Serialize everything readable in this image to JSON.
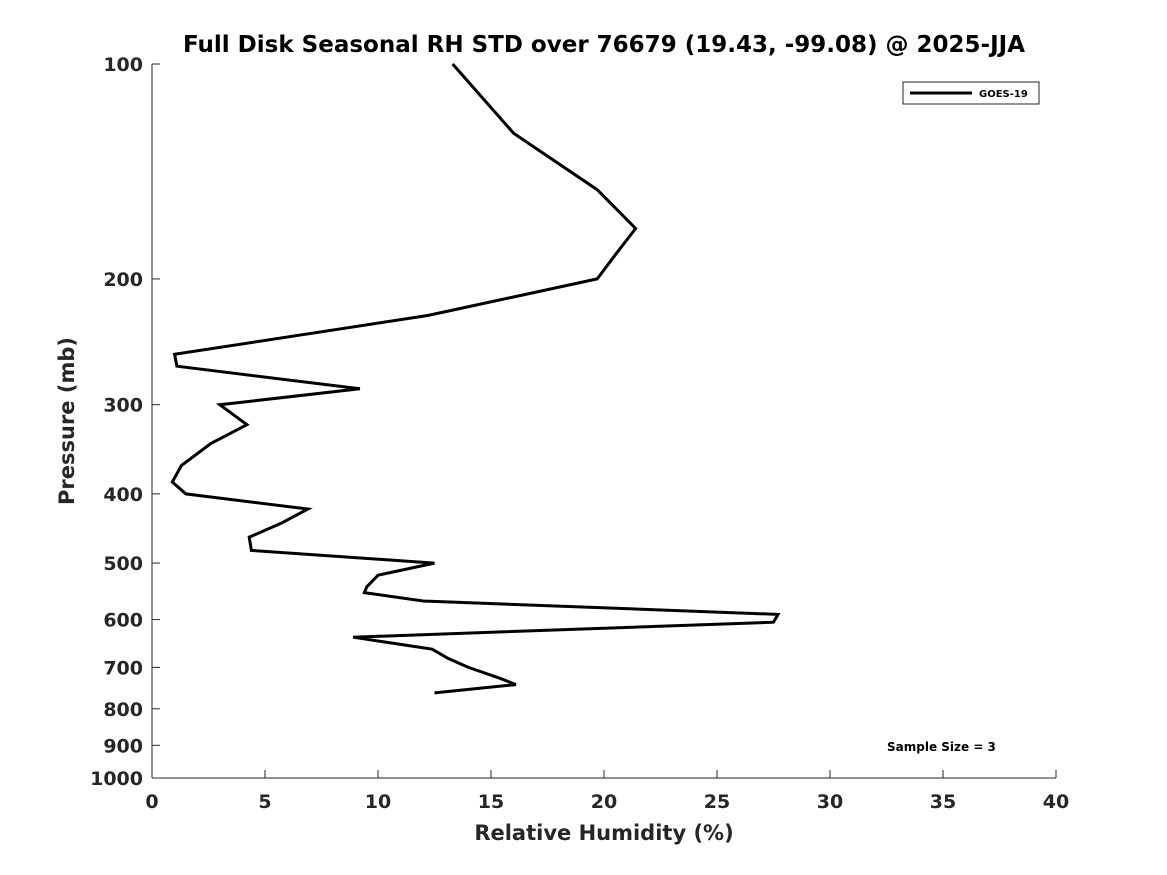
{
  "chart_data": {
    "type": "line",
    "title": "Full Disk Seasonal RH STD over 76679 (19.43, -99.08) @ 2025-JJA",
    "xlabel": "Relative Humidity (%)",
    "ylabel": "Pressure (mb)",
    "xlim": [
      0,
      40
    ],
    "ylim": [
      100,
      1000
    ],
    "y_scale": "log",
    "y_reversed": true,
    "grid": false,
    "legend_position": "top-right",
    "x_ticks": [
      0,
      5,
      10,
      15,
      20,
      25,
      30,
      35,
      40
    ],
    "x_tick_labels": [
      "0",
      "5",
      "10",
      "15",
      "20",
      "25",
      "30",
      "35",
      "40"
    ],
    "y_ticks": [
      100,
      200,
      300,
      400,
      500,
      600,
      700,
      800,
      900,
      1000
    ],
    "y_tick_labels": [
      "100",
      "200",
      "300",
      "400",
      "500",
      "600",
      "700",
      "800",
      "900",
      "1000"
    ],
    "series": [
      {
        "name": "GOES-19",
        "color": "#000000",
        "x": [
          13.3,
          16.0,
          19.7,
          21.4,
          20.5,
          19.7,
          12.2,
          1.0,
          1.1,
          9.2,
          3.0,
          4.2,
          2.6,
          1.3,
          0.9,
          1.5,
          6.9,
          5.7,
          4.3,
          4.4,
          12.5,
          10.0,
          9.5,
          9.4,
          12.0,
          27.7,
          27.5,
          8.9,
          12.4,
          13.1,
          14.0,
          15.4,
          16.1,
          12.5
        ],
        "y": [
          100,
          125,
          150,
          170,
          185,
          200,
          225,
          255,
          265,
          285,
          300,
          320,
          340,
          365,
          385,
          400,
          420,
          440,
          460,
          480,
          500,
          520,
          540,
          550,
          565,
          590,
          605,
          635,
          660,
          680,
          700,
          725,
          740,
          760
        ]
      }
    ],
    "annotations": [
      "Sample Size = 3"
    ]
  }
}
